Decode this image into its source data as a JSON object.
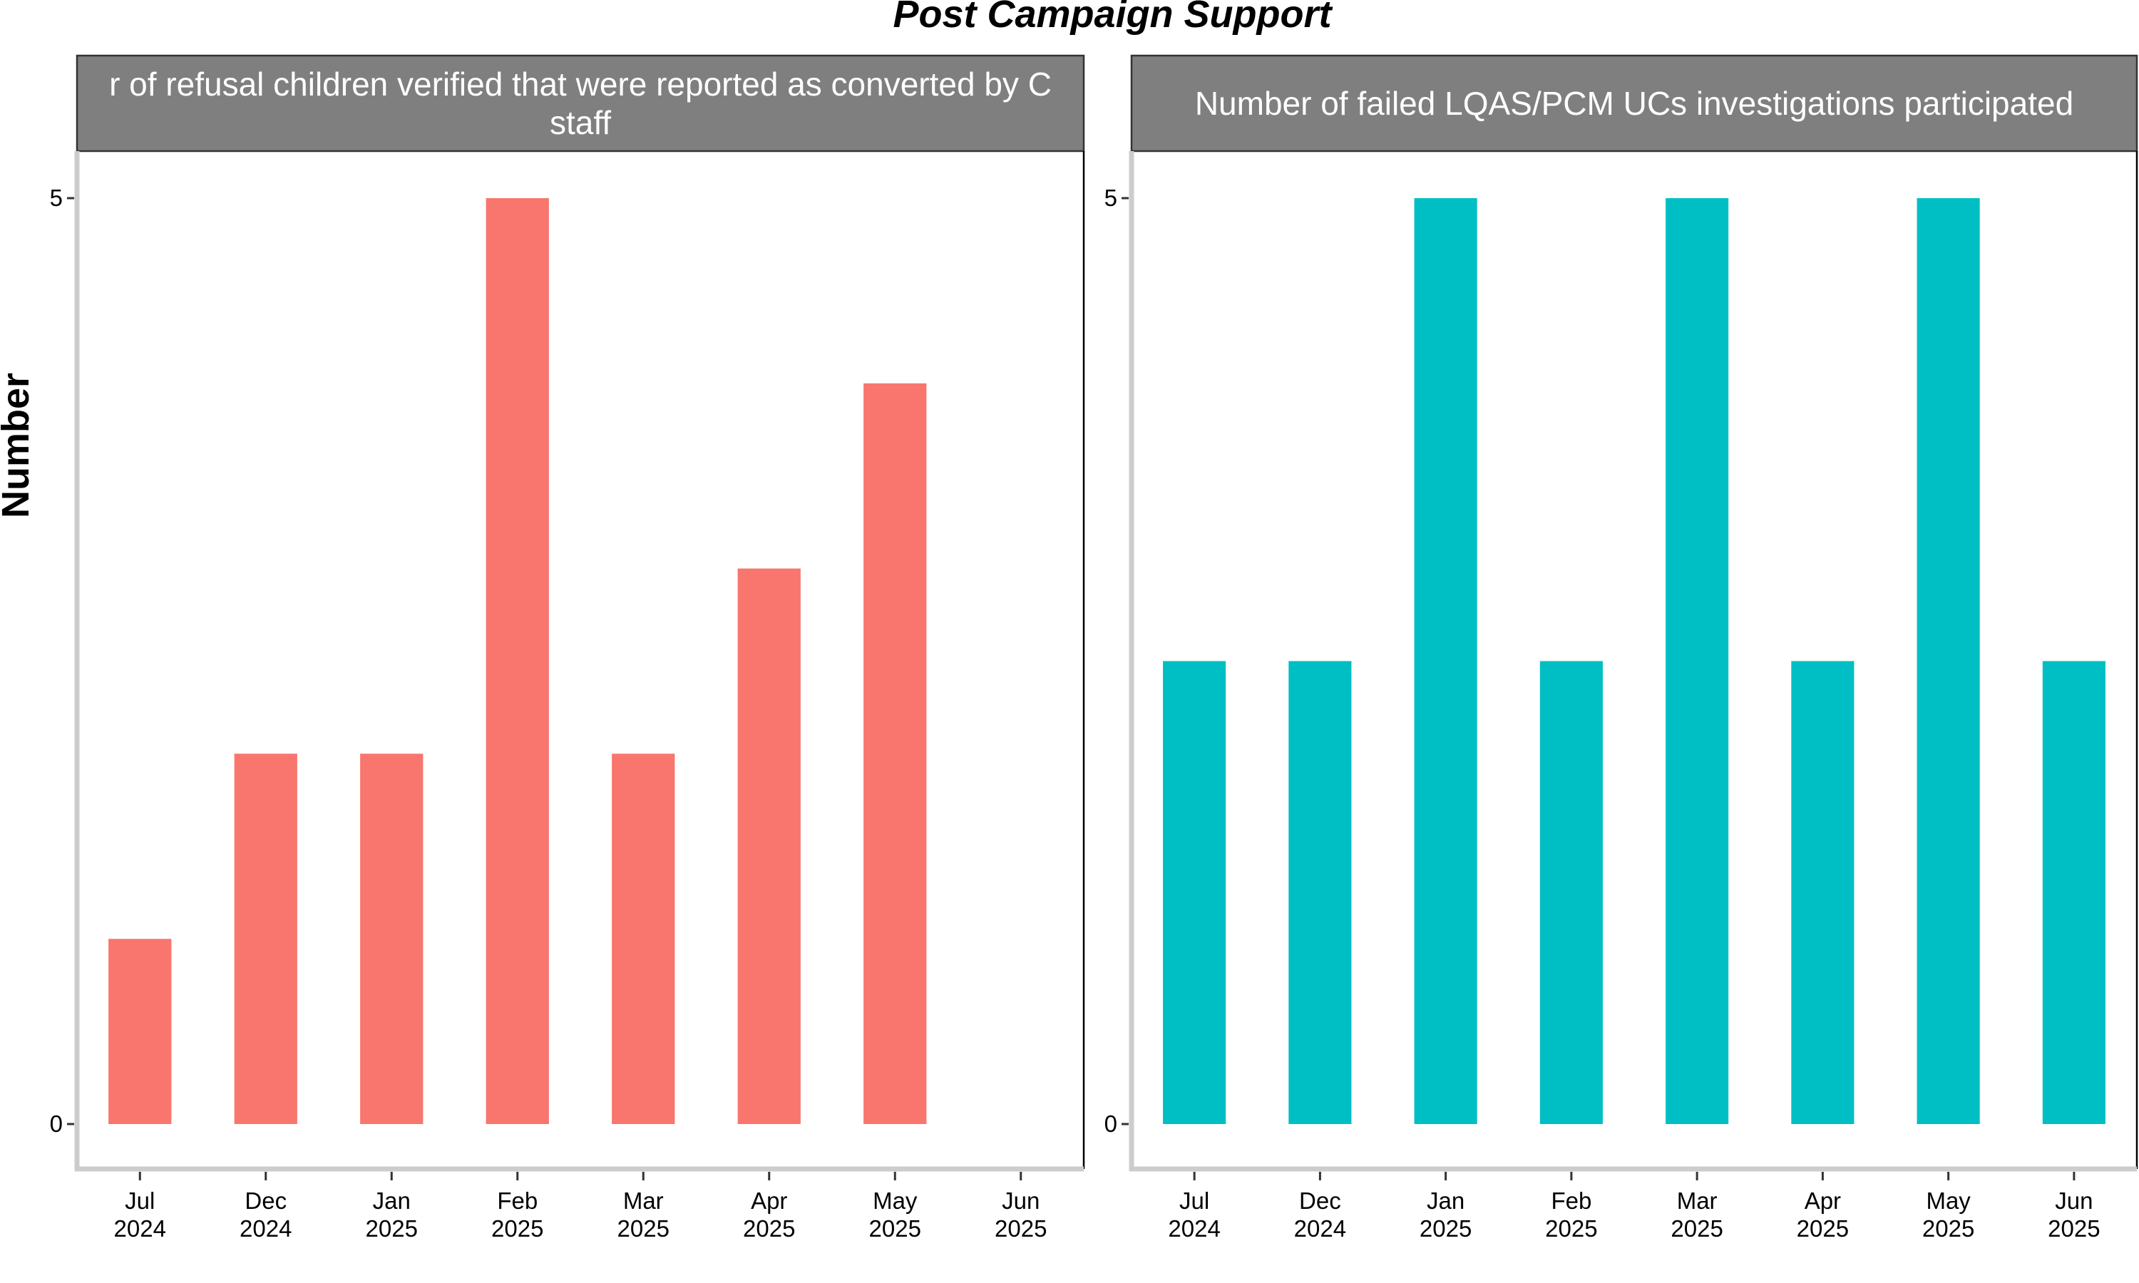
{
  "chart_data": {
    "type": "bar",
    "title": "Post Campaign Support",
    "ylabel": "Number",
    "ylim": [
      0,
      5
    ],
    "y_ticks": [
      "0",
      "5"
    ],
    "categories": [
      "Jul\n2024",
      "Dec\n2024",
      "Jan\n2025",
      "Feb\n2025",
      "Mar\n2025",
      "Apr\n2025",
      "May\n2025",
      "Jun\n2025"
    ],
    "grid": false,
    "facets": [
      {
        "strip_lines": [
          "r of refusal children verified that were reported as converted by C",
          "staff"
        ],
        "color": "#F8766D",
        "values": [
          1,
          2,
          2,
          5,
          2,
          3,
          4,
          null
        ]
      },
      {
        "strip_lines": [
          "Number of failed LQAS/PCM UCs investigations participated"
        ],
        "color": "#00BFC4",
        "values": [
          2.5,
          2.5,
          5,
          2.5,
          5,
          2.5,
          5,
          2.5
        ]
      }
    ]
  }
}
